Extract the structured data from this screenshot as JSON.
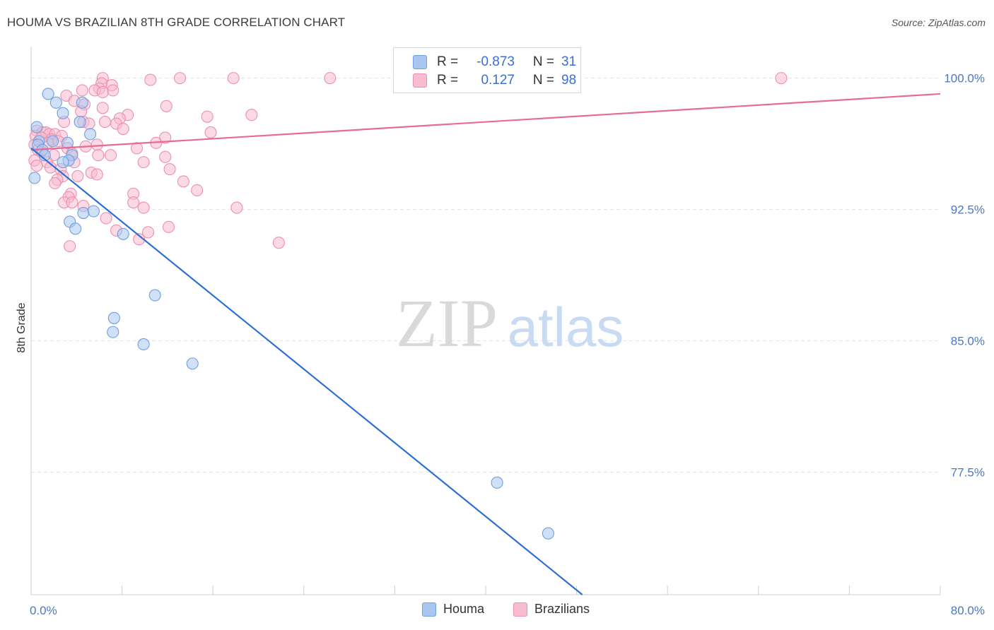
{
  "header": {
    "title": "HOUMA VS BRAZILIAN 8TH GRADE CORRELATION CHART",
    "source": "Source: ZipAtlas.com"
  },
  "watermark": {
    "zip": "ZIP",
    "atlas": "atlas"
  },
  "legend": {
    "rows": [
      {
        "r_label": "R =",
        "r_value": "-0.873",
        "n_label": "N =",
        "n_value": "31",
        "color": "#a9c6f0",
        "border": "#6f9fe0"
      },
      {
        "r_label": "R =",
        "r_value": "0.127",
        "n_label": "N =",
        "n_value": "98",
        "color": "#f7bcd0",
        "border": "#ec8fb0"
      }
    ]
  },
  "bottom_legend": {
    "houma": "Houma",
    "brazilians": "Brazilians"
  },
  "colors": {
    "houma_fill": "#a9c6f0",
    "houma_stroke": "#6f9fe0",
    "houma_line": "#2d6fd6",
    "brazil_fill": "#f7bcd0",
    "brazil_stroke": "#ec8fb0",
    "brazil_line": "#e86a97",
    "grid": "#e3e3e3",
    "tick_text": "#4a78c8"
  },
  "chart_data": {
    "type": "scatter",
    "title": "HOUMA VS BRAZILIAN 8TH GRADE CORRELATION CHART",
    "xlabel": "",
    "ylabel": "8th Grade",
    "xlim": [
      0,
      80
    ],
    "ylim": [
      70.5,
      101.8
    ],
    "x_ticks_labeled": [
      {
        "value": 0,
        "label": "0.0%"
      },
      {
        "value": 80,
        "label": "80.0%"
      }
    ],
    "x_ticks_minor": [
      8,
      16,
      24,
      32,
      40,
      48,
      56,
      64,
      72
    ],
    "y_ticks": [
      {
        "value": 100.0,
        "label": "100.0%"
      },
      {
        "value": 92.5,
        "label": "92.5%"
      },
      {
        "value": 85.0,
        "label": "85.0%"
      },
      {
        "value": 77.5,
        "label": "77.5%"
      }
    ],
    "series": [
      {
        "name": "Houma",
        "r": -0.873,
        "n": 31,
        "trend": {
          "x": [
            0,
            48.5
          ],
          "y": [
            96.0,
            70.5
          ]
        },
        "points": [
          {
            "x": 1.5,
            "y": 99.1
          },
          {
            "x": 2.2,
            "y": 98.6
          },
          {
            "x": 4.5,
            "y": 98.6
          },
          {
            "x": 2.8,
            "y": 98.0
          },
          {
            "x": 4.3,
            "y": 97.5
          },
          {
            "x": 0.5,
            "y": 97.2
          },
          {
            "x": 5.2,
            "y": 96.8
          },
          {
            "x": 0.7,
            "y": 96.4
          },
          {
            "x": 1.9,
            "y": 96.4
          },
          {
            "x": 3.2,
            "y": 96.3
          },
          {
            "x": 0.6,
            "y": 96.2
          },
          {
            "x": 1.0,
            "y": 95.9
          },
          {
            "x": 1.2,
            "y": 95.6
          },
          {
            "x": 3.6,
            "y": 95.6
          },
          {
            "x": 3.3,
            "y": 95.3
          },
          {
            "x": 2.8,
            "y": 95.2
          },
          {
            "x": 0.3,
            "y": 94.3
          },
          {
            "x": 4.6,
            "y": 92.3
          },
          {
            "x": 5.5,
            "y": 92.4
          },
          {
            "x": 3.4,
            "y": 91.8
          },
          {
            "x": 3.9,
            "y": 91.4
          },
          {
            "x": 8.1,
            "y": 91.1
          },
          {
            "x": 10.9,
            "y": 87.6
          },
          {
            "x": 7.3,
            "y": 86.3
          },
          {
            "x": 7.2,
            "y": 85.5
          },
          {
            "x": 9.9,
            "y": 84.8
          },
          {
            "x": 14.2,
            "y": 83.7
          },
          {
            "x": 41.0,
            "y": 76.9
          },
          {
            "x": 45.5,
            "y": 74.0
          }
        ]
      },
      {
        "name": "Brazilians",
        "r": 0.127,
        "n": 98,
        "trend": {
          "x": [
            0,
            80
          ],
          "y": [
            95.9,
            99.1
          ]
        },
        "points": [
          {
            "x": 6.3,
            "y": 100.0
          },
          {
            "x": 10.5,
            "y": 99.9
          },
          {
            "x": 13.1,
            "y": 100.0
          },
          {
            "x": 17.8,
            "y": 100.0
          },
          {
            "x": 26.3,
            "y": 100.0
          },
          {
            "x": 66.0,
            "y": 100.0
          },
          {
            "x": 6.2,
            "y": 99.7
          },
          {
            "x": 7.1,
            "y": 99.6
          },
          {
            "x": 6.0,
            "y": 99.4
          },
          {
            "x": 5.6,
            "y": 99.3
          },
          {
            "x": 7.2,
            "y": 99.3
          },
          {
            "x": 6.3,
            "y": 99.2
          },
          {
            "x": 4.5,
            "y": 99.3
          },
          {
            "x": 3.1,
            "y": 99.0
          },
          {
            "x": 3.8,
            "y": 98.7
          },
          {
            "x": 4.7,
            "y": 98.5
          },
          {
            "x": 6.3,
            "y": 98.3
          },
          {
            "x": 11.9,
            "y": 98.4
          },
          {
            "x": 4.4,
            "y": 98.1
          },
          {
            "x": 8.5,
            "y": 97.9
          },
          {
            "x": 7.8,
            "y": 97.7
          },
          {
            "x": 15.5,
            "y": 97.8
          },
          {
            "x": 19.4,
            "y": 97.9
          },
          {
            "x": 2.9,
            "y": 97.5
          },
          {
            "x": 4.6,
            "y": 97.5
          },
          {
            "x": 5.1,
            "y": 97.4
          },
          {
            "x": 6.5,
            "y": 97.5
          },
          {
            "x": 7.5,
            "y": 97.4
          },
          {
            "x": 8.1,
            "y": 97.1
          },
          {
            "x": 15.8,
            "y": 96.9
          },
          {
            "x": 0.5,
            "y": 97.0
          },
          {
            "x": 1.0,
            "y": 96.9
          },
          {
            "x": 1.3,
            "y": 96.9
          },
          {
            "x": 1.6,
            "y": 96.8
          },
          {
            "x": 2.1,
            "y": 96.8
          },
          {
            "x": 0.4,
            "y": 96.7
          },
          {
            "x": 0.9,
            "y": 96.6
          },
          {
            "x": 1.8,
            "y": 96.5
          },
          {
            "x": 2.7,
            "y": 96.7
          },
          {
            "x": 11.8,
            "y": 96.6
          },
          {
            "x": 11.0,
            "y": 96.3
          },
          {
            "x": 0.3,
            "y": 96.2
          },
          {
            "x": 1.5,
            "y": 96.3
          },
          {
            "x": 2.4,
            "y": 96.4
          },
          {
            "x": 3.2,
            "y": 96.0
          },
          {
            "x": 4.8,
            "y": 96.1
          },
          {
            "x": 5.8,
            "y": 96.2
          },
          {
            "x": 9.3,
            "y": 96.0
          },
          {
            "x": 0.6,
            "y": 95.9
          },
          {
            "x": 0.9,
            "y": 95.8
          },
          {
            "x": 2.0,
            "y": 95.6
          },
          {
            "x": 3.6,
            "y": 95.7
          },
          {
            "x": 5.9,
            "y": 95.6
          },
          {
            "x": 7.0,
            "y": 95.6
          },
          {
            "x": 11.8,
            "y": 95.5
          },
          {
            "x": 0.3,
            "y": 95.3
          },
          {
            "x": 1.4,
            "y": 95.2
          },
          {
            "x": 3.8,
            "y": 95.2
          },
          {
            "x": 9.9,
            "y": 95.2
          },
          {
            "x": 0.5,
            "y": 95.0
          },
          {
            "x": 1.7,
            "y": 94.9
          },
          {
            "x": 2.6,
            "y": 94.8
          },
          {
            "x": 12.2,
            "y": 94.8
          },
          {
            "x": 5.3,
            "y": 94.6
          },
          {
            "x": 5.8,
            "y": 94.5
          },
          {
            "x": 2.8,
            "y": 94.4
          },
          {
            "x": 4.1,
            "y": 94.4
          },
          {
            "x": 2.3,
            "y": 94.2
          },
          {
            "x": 13.4,
            "y": 94.1
          },
          {
            "x": 2.1,
            "y": 94.0
          },
          {
            "x": 14.6,
            "y": 93.6
          },
          {
            "x": 3.5,
            "y": 93.4
          },
          {
            "x": 9.0,
            "y": 93.4
          },
          {
            "x": 3.3,
            "y": 93.2
          },
          {
            "x": 2.9,
            "y": 92.9
          },
          {
            "x": 3.6,
            "y": 92.9
          },
          {
            "x": 9.0,
            "y": 92.9
          },
          {
            "x": 4.6,
            "y": 92.7
          },
          {
            "x": 9.9,
            "y": 92.6
          },
          {
            "x": 18.1,
            "y": 92.6
          },
          {
            "x": 6.6,
            "y": 92.0
          },
          {
            "x": 12.1,
            "y": 91.5
          },
          {
            "x": 7.5,
            "y": 91.3
          },
          {
            "x": 10.3,
            "y": 91.2
          },
          {
            "x": 9.5,
            "y": 90.8
          },
          {
            "x": 21.8,
            "y": 90.6
          },
          {
            "x": 3.4,
            "y": 90.4
          }
        ]
      }
    ]
  }
}
